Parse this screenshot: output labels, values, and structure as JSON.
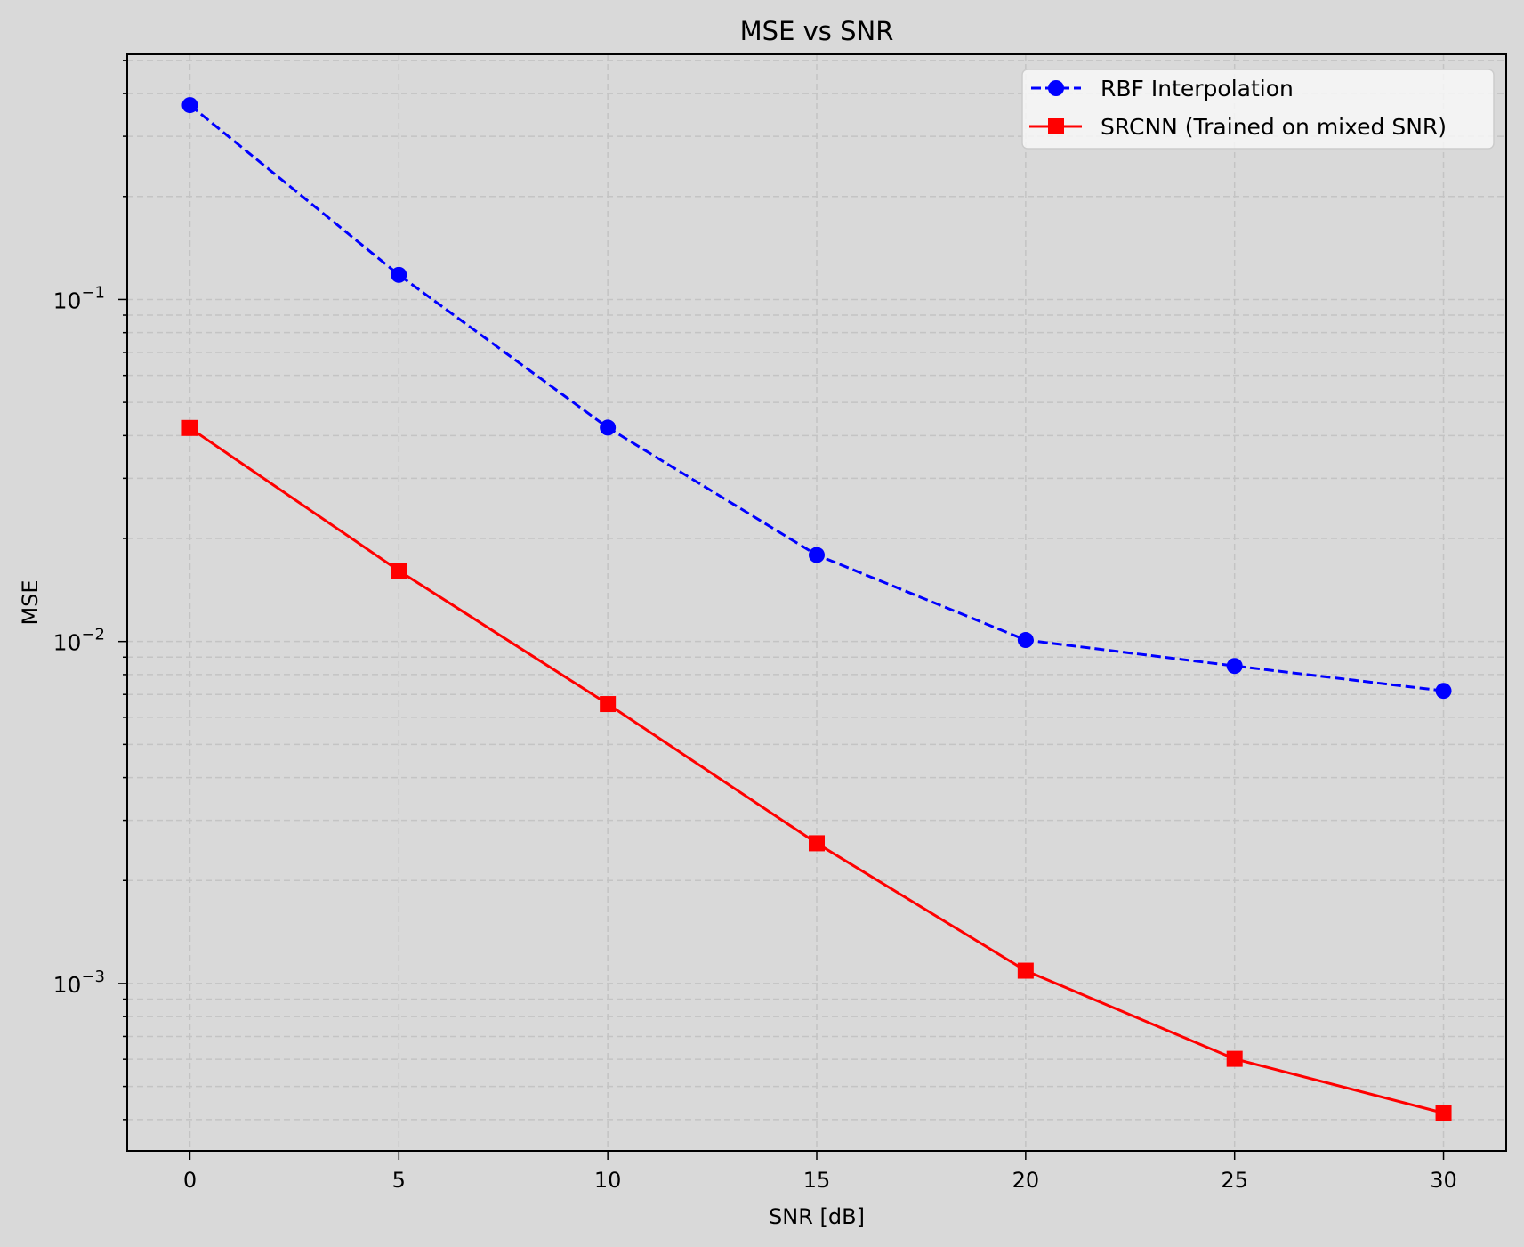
{
  "figure": {
    "background": "#d9d9d9",
    "axes_background": "#d9d9d9",
    "grid_color": "#c4c4c4"
  },
  "chart_data": {
    "type": "line",
    "title": "MSE vs SNR",
    "xlabel": "SNR [dB]",
    "ylabel": "MSE",
    "yscale": "log",
    "x": [
      0,
      5,
      10,
      15,
      20,
      25,
      30
    ],
    "xticks": [
      0,
      5,
      10,
      15,
      20,
      25,
      30
    ],
    "xtick_labels": [
      "0",
      "5",
      "10",
      "15",
      "20",
      "25",
      "30"
    ],
    "yticks": [
      0.1,
      0.01,
      0.001
    ],
    "ytick_labels": [
      {
        "base": "10",
        "exp": "−1"
      },
      {
        "base": "10",
        "exp": "−2"
      },
      {
        "base": "10",
        "exp": "−3"
      }
    ],
    "xlim": [
      -1.5,
      31.5
    ],
    "ylim": [
      0.000324,
      0.521
    ],
    "grid": true,
    "grid_style": "dashed, major and minor",
    "legend_position": "upper right",
    "series": [
      {
        "name": "RBF Interpolation",
        "color": "#0000ff",
        "linestyle": "dashed",
        "marker": "circle",
        "values": [
          0.37,
          0.118,
          0.0422,
          0.0179,
          0.0101,
          0.00848,
          0.00717
        ]
      },
      {
        "name": "SRCNN (Trained on mixed SNR)",
        "color": "#ff0000",
        "linestyle": "solid",
        "marker": "square",
        "values": [
          0.0421,
          0.0161,
          0.00656,
          0.00257,
          0.00109,
          0.000602,
          0.000418
        ]
      }
    ]
  }
}
